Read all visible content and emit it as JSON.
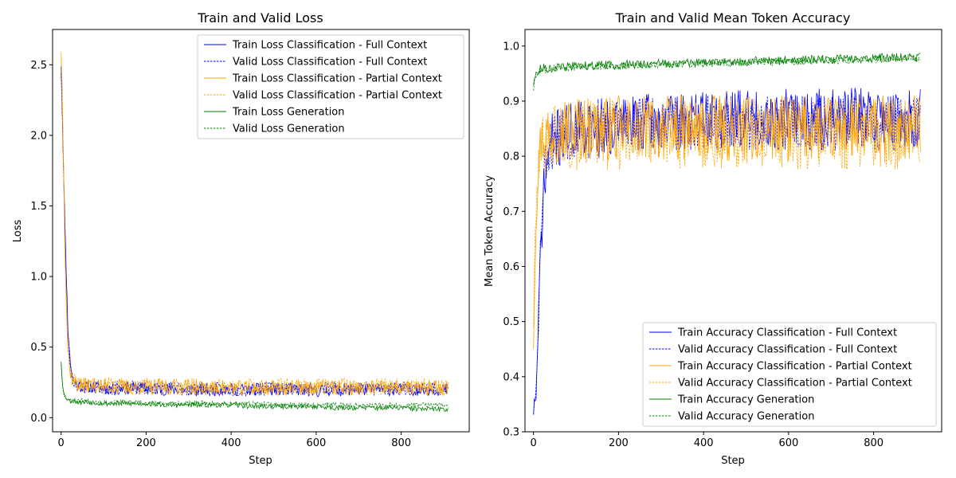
{
  "chart_data": [
    {
      "type": "line",
      "title": "Train and Valid Loss",
      "xlabel": "Step",
      "ylabel": "Loss",
      "xlim": [
        -20,
        960
      ],
      "ylim": [
        -0.1,
        2.75
      ],
      "xticks": [
        0,
        200,
        400,
        600,
        800
      ],
      "yticks": [
        0.0,
        0.5,
        1.0,
        1.5,
        2.0,
        2.5
      ],
      "xtick_labels": [
        "0",
        "200",
        "400",
        "600",
        "800"
      ],
      "ytick_labels": [
        "0.0",
        "0.5",
        "1.0",
        "1.5",
        "2.0",
        "2.5"
      ],
      "grid": false,
      "legend_position": "top-right",
      "x": [
        0,
        2,
        4,
        6,
        8,
        10,
        12,
        14,
        16,
        20,
        25,
        30,
        40,
        50,
        75,
        100,
        150,
        200,
        250,
        300,
        350,
        400,
        450,
        500,
        550,
        600,
        650,
        700,
        750,
        800,
        850,
        900,
        910
      ],
      "series": [
        {
          "name": "Train Loss Classification - Full Context",
          "color": "#0000ff",
          "dash": "solid",
          "noise": 0.045,
          "seed": 11,
          "values": [
            2.5,
            2.3,
            2.0,
            1.75,
            1.5,
            1.25,
            1.05,
            0.85,
            0.65,
            0.45,
            0.32,
            0.26,
            0.23,
            0.22,
            0.22,
            0.21,
            0.21,
            0.21,
            0.2,
            0.2,
            0.2,
            0.2,
            0.2,
            0.2,
            0.2,
            0.19,
            0.2,
            0.2,
            0.2,
            0.2,
            0.2,
            0.2,
            0.19
          ]
        },
        {
          "name": "Valid Loss Classification - Full Context",
          "color": "#0000ff",
          "dash": "dashed",
          "noise": 0.05,
          "seed": 23,
          "values": [
            2.45,
            2.25,
            2.0,
            1.7,
            1.45,
            1.2,
            1.0,
            0.8,
            0.6,
            0.42,
            0.3,
            0.25,
            0.23,
            0.22,
            0.22,
            0.21,
            0.21,
            0.21,
            0.21,
            0.2,
            0.2,
            0.2,
            0.2,
            0.21,
            0.21,
            0.2,
            0.21,
            0.21,
            0.21,
            0.21,
            0.21,
            0.21,
            0.2
          ]
        },
        {
          "name": "Train Loss Classification - Partial Context",
          "color": "#ffa500",
          "dash": "solid",
          "noise": 0.055,
          "seed": 37,
          "values": [
            2.6,
            2.4,
            2.1,
            1.8,
            1.4,
            1.1,
            0.9,
            0.7,
            0.5,
            0.35,
            0.28,
            0.25,
            0.24,
            0.23,
            0.23,
            0.22,
            0.22,
            0.22,
            0.22,
            0.22,
            0.21,
            0.21,
            0.21,
            0.21,
            0.21,
            0.21,
            0.21,
            0.21,
            0.21,
            0.21,
            0.21,
            0.21,
            0.21
          ]
        },
        {
          "name": "Valid Loss Classification - Partial Context",
          "color": "#ffa500",
          "dash": "dashed",
          "noise": 0.06,
          "seed": 41,
          "values": [
            2.55,
            2.35,
            2.05,
            1.75,
            1.35,
            1.05,
            0.85,
            0.65,
            0.48,
            0.34,
            0.28,
            0.25,
            0.24,
            0.23,
            0.23,
            0.23,
            0.22,
            0.22,
            0.22,
            0.22,
            0.22,
            0.22,
            0.22,
            0.22,
            0.22,
            0.22,
            0.23,
            0.22,
            0.22,
            0.22,
            0.22,
            0.22,
            0.22
          ]
        },
        {
          "name": "Train Loss Generation",
          "color": "#008000",
          "dash": "solid",
          "noise": 0.018,
          "seed": 53,
          "values": [
            0.4,
            0.3,
            0.22,
            0.18,
            0.16,
            0.15,
            0.14,
            0.13,
            0.13,
            0.12,
            0.12,
            0.12,
            0.11,
            0.11,
            0.11,
            0.1,
            0.1,
            0.1,
            0.09,
            0.09,
            0.09,
            0.09,
            0.08,
            0.08,
            0.08,
            0.08,
            0.07,
            0.07,
            0.07,
            0.07,
            0.06,
            0.06,
            0.06
          ]
        },
        {
          "name": "Valid Loss Generation",
          "color": "#008000",
          "dash": "dashed",
          "noise": 0.018,
          "seed": 67,
          "values": [
            0.38,
            0.29,
            0.22,
            0.18,
            0.16,
            0.15,
            0.14,
            0.14,
            0.13,
            0.13,
            0.12,
            0.12,
            0.12,
            0.12,
            0.11,
            0.11,
            0.11,
            0.1,
            0.1,
            0.1,
            0.1,
            0.1,
            0.1,
            0.09,
            0.09,
            0.09,
            0.09,
            0.09,
            0.09,
            0.09,
            0.09,
            0.09,
            0.09
          ]
        }
      ]
    },
    {
      "type": "line",
      "title": "Train and Valid Mean Token Accuracy",
      "xlabel": "Step",
      "ylabel": "Mean Token Accuracy",
      "xlim": [
        -20,
        960
      ],
      "ylim": [
        0.3,
        1.03
      ],
      "xticks": [
        0,
        200,
        400,
        600,
        800
      ],
      "yticks": [
        0.3,
        0.4,
        0.5,
        0.6,
        0.7,
        0.8,
        0.9,
        1.0
      ],
      "xtick_labels": [
        "0",
        "200",
        "400",
        "600",
        "800"
      ],
      "ytick_labels": [
        "0.3",
        "0.4",
        "0.5",
        "0.6",
        "0.7",
        "0.8",
        "0.9",
        "1.0"
      ],
      "grid": false,
      "legend_position": "lower-right",
      "x": [
        0,
        2,
        4,
        6,
        8,
        10,
        12,
        14,
        16,
        20,
        25,
        30,
        40,
        50,
        75,
        100,
        150,
        200,
        250,
        300,
        350,
        400,
        450,
        500,
        550,
        600,
        650,
        700,
        750,
        800,
        850,
        900,
        910
      ],
      "series": [
        {
          "name": "Train Accuracy Classification - Full Context",
          "color": "#0000ff",
          "dash": "solid",
          "noise": 0.055,
          "seed": 71,
          "values": [
            0.34,
            0.35,
            0.36,
            0.37,
            0.4,
            0.44,
            0.5,
            0.56,
            0.62,
            0.68,
            0.74,
            0.78,
            0.82,
            0.83,
            0.84,
            0.85,
            0.85,
            0.86,
            0.86,
            0.86,
            0.86,
            0.87,
            0.87,
            0.87,
            0.87,
            0.87,
            0.87,
            0.87,
            0.87,
            0.87,
            0.87,
            0.87,
            0.87
          ]
        },
        {
          "name": "Valid Accuracy Classification - Full Context",
          "color": "#0000ff",
          "dash": "dashed",
          "noise": 0.05,
          "seed": 83,
          "values": [
            0.34,
            0.34,
            0.35,
            0.37,
            0.4,
            0.45,
            0.51,
            0.57,
            0.63,
            0.69,
            0.75,
            0.79,
            0.82,
            0.83,
            0.84,
            0.85,
            0.85,
            0.86,
            0.86,
            0.86,
            0.86,
            0.86,
            0.86,
            0.86,
            0.86,
            0.86,
            0.86,
            0.86,
            0.86,
            0.86,
            0.86,
            0.86,
            0.86
          ]
        },
        {
          "name": "Train Accuracy Classification - Partial Context",
          "color": "#ffa500",
          "dash": "solid",
          "noise": 0.06,
          "seed": 97,
          "values": [
            0.46,
            0.55,
            0.62,
            0.68,
            0.72,
            0.76,
            0.79,
            0.81,
            0.82,
            0.83,
            0.84,
            0.84,
            0.84,
            0.85,
            0.85,
            0.85,
            0.85,
            0.85,
            0.85,
            0.85,
            0.85,
            0.85,
            0.85,
            0.85,
            0.85,
            0.85,
            0.85,
            0.85,
            0.85,
            0.85,
            0.85,
            0.85,
            0.85
          ]
        },
        {
          "name": "Valid Accuracy Classification - Partial Context",
          "color": "#ffa500",
          "dash": "dashed",
          "noise": 0.065,
          "seed": 101,
          "values": [
            0.5,
            0.58,
            0.64,
            0.69,
            0.73,
            0.76,
            0.78,
            0.8,
            0.81,
            0.82,
            0.83,
            0.83,
            0.84,
            0.84,
            0.84,
            0.84,
            0.84,
            0.84,
            0.84,
            0.84,
            0.84,
            0.84,
            0.84,
            0.84,
            0.84,
            0.84,
            0.84,
            0.84,
            0.84,
            0.84,
            0.84,
            0.84,
            0.84
          ]
        },
        {
          "name": "Train Accuracy Generation",
          "color": "#008000",
          "dash": "solid",
          "noise": 0.008,
          "seed": 113,
          "values": [
            0.93,
            0.94,
            0.945,
            0.95,
            0.95,
            0.955,
            0.955,
            0.955,
            0.96,
            0.96,
            0.96,
            0.96,
            0.96,
            0.96,
            0.962,
            0.964,
            0.965,
            0.966,
            0.967,
            0.968,
            0.969,
            0.97,
            0.971,
            0.972,
            0.973,
            0.974,
            0.975,
            0.976,
            0.977,
            0.978,
            0.979,
            0.98,
            0.98
          ]
        },
        {
          "name": "Valid Accuracy Generation",
          "color": "#008000",
          "dash": "dashed",
          "noise": 0.007,
          "seed": 127,
          "values": [
            0.92,
            0.935,
            0.94,
            0.945,
            0.948,
            0.95,
            0.952,
            0.954,
            0.955,
            0.956,
            0.957,
            0.958,
            0.959,
            0.96,
            0.961,
            0.962,
            0.963,
            0.964,
            0.965,
            0.966,
            0.967,
            0.968,
            0.969,
            0.97,
            0.971,
            0.972,
            0.973,
            0.974,
            0.975,
            0.976,
            0.977,
            0.978,
            0.978
          ]
        }
      ]
    }
  ]
}
